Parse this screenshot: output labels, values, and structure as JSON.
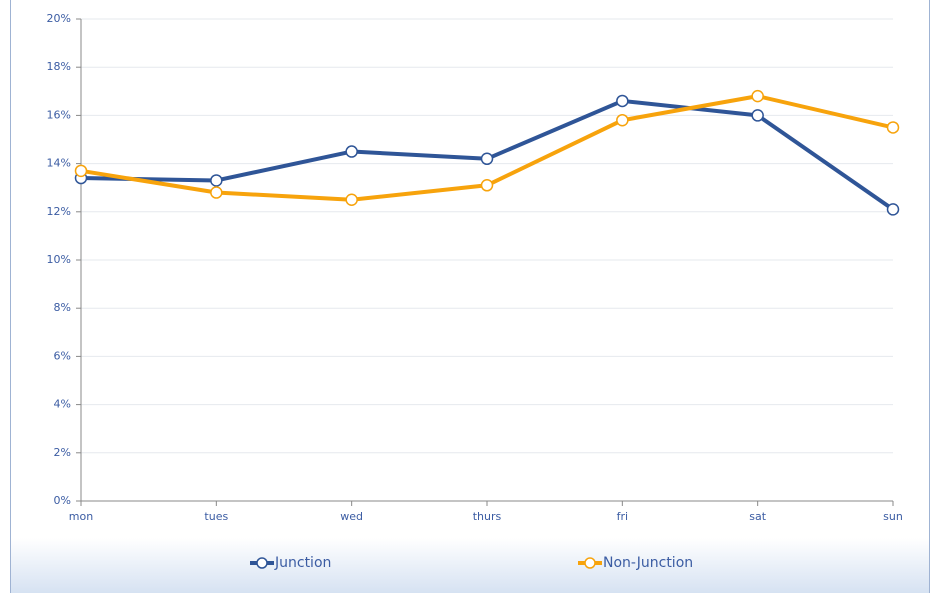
{
  "chart_data": {
    "type": "line",
    "categories": [
      "mon",
      "tues",
      "wed",
      "thurs",
      "fri",
      "sat",
      "sun"
    ],
    "series": [
      {
        "name": "Junction",
        "color": "#2f5597",
        "values": [
          13.4,
          13.3,
          14.5,
          14.2,
          16.6,
          16.0,
          12.1
        ]
      },
      {
        "name": "Non-Junction",
        "color": "#f7a30c",
        "values": [
          13.7,
          12.8,
          12.5,
          13.1,
          15.8,
          16.8,
          15.5
        ]
      }
    ],
    "ylim": [
      0,
      20
    ],
    "yticks": [
      {
        "value": 0,
        "label": "0%"
      },
      {
        "value": 2,
        "label": "2%"
      },
      {
        "value": 4,
        "label": "4%"
      },
      {
        "value": 6,
        "label": "6%"
      },
      {
        "value": 8,
        "label": "8%"
      },
      {
        "value": 10,
        "label": "10%"
      },
      {
        "value": 12,
        "label": "12%"
      },
      {
        "value": 14,
        "label": "14%"
      },
      {
        "value": 16,
        "label": "16%"
      },
      {
        "value": 18,
        "label": "18%"
      },
      {
        "value": 20,
        "label": "20%"
      }
    ],
    "grid": true,
    "legend": "bottom"
  }
}
